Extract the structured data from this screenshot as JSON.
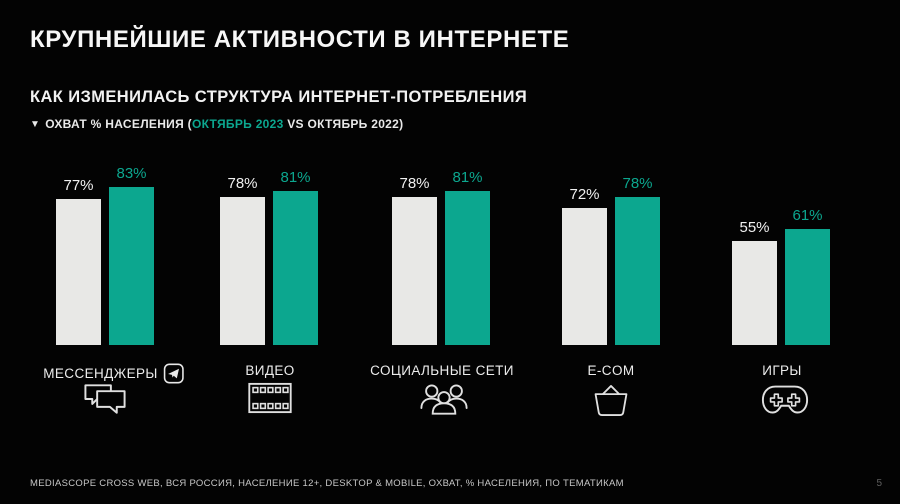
{
  "page": {
    "title": "КРУПНЕЙШИЕ АКТИВНОСТИ В ИНТЕРНЕТЕ",
    "subtitle": "КАК ИЗМЕНИЛАСЬ СТРУКТУРА ИНТЕРНЕТ-ПОТРЕБЛЕНИЯ",
    "caption": {
      "marker": "▼",
      "prefix": "ОХВАТ % НАСЕЛЕНИЯ (",
      "highlight": "ОКТЯБРЬ 2023",
      "suffix": " VS ОКТЯБРЬ 2022)"
    },
    "footer": "MEDIASCOPE CROSS WEB, ВСЯ РОССИЯ, НАСЕЛЕНИЕ 12+, DESKTOP & MOBILE, ОХВАТ, %  НАСЕЛЕНИЯ, ПО ТЕМАТИКАМ",
    "page_number": "5"
  },
  "colors": {
    "background": "#030303",
    "accent_teal": "#0ca78f",
    "bar_white": "#e8e8e6"
  },
  "icons": {
    "messengers": "chat-bubbles-icon",
    "messengers_badge": "telegram-icon",
    "video": "film-strip-icon",
    "social": "people-group-icon",
    "ecom": "shopping-basket-icon",
    "games": "gamepad-icon"
  },
  "chart_data": {
    "type": "bar",
    "title": "ОХВАТ % НАСЕЛЕНИЯ (ОКТЯБРЬ 2023 VS ОКТЯБРЬ 2022)",
    "categories": [
      "МЕССЕНДЖЕРЫ",
      "ВИДЕО",
      "СОЦИАЛЬНЫЕ СЕТИ",
      "E-COM",
      "ИГРЫ"
    ],
    "series": [
      {
        "name": "ОКТЯБРЬ 2022",
        "color": "#e8e8e6",
        "values": [
          77,
          78,
          78,
          72,
          55
        ]
      },
      {
        "name": "ОКТЯБРЬ 2023",
        "color": "#0ca78f",
        "values": [
          83,
          81,
          81,
          78,
          61
        ]
      }
    ],
    "value_labels": {
      "oct2022": [
        "77%",
        "78%",
        "78%",
        "72%",
        "55%"
      ],
      "oct2023": [
        "83%",
        "81%",
        "81%",
        "78%",
        "61%"
      ]
    },
    "unit": "%",
    "ylim": [
      0,
      100
    ],
    "grid": false,
    "legend": "inline-in-caption"
  }
}
